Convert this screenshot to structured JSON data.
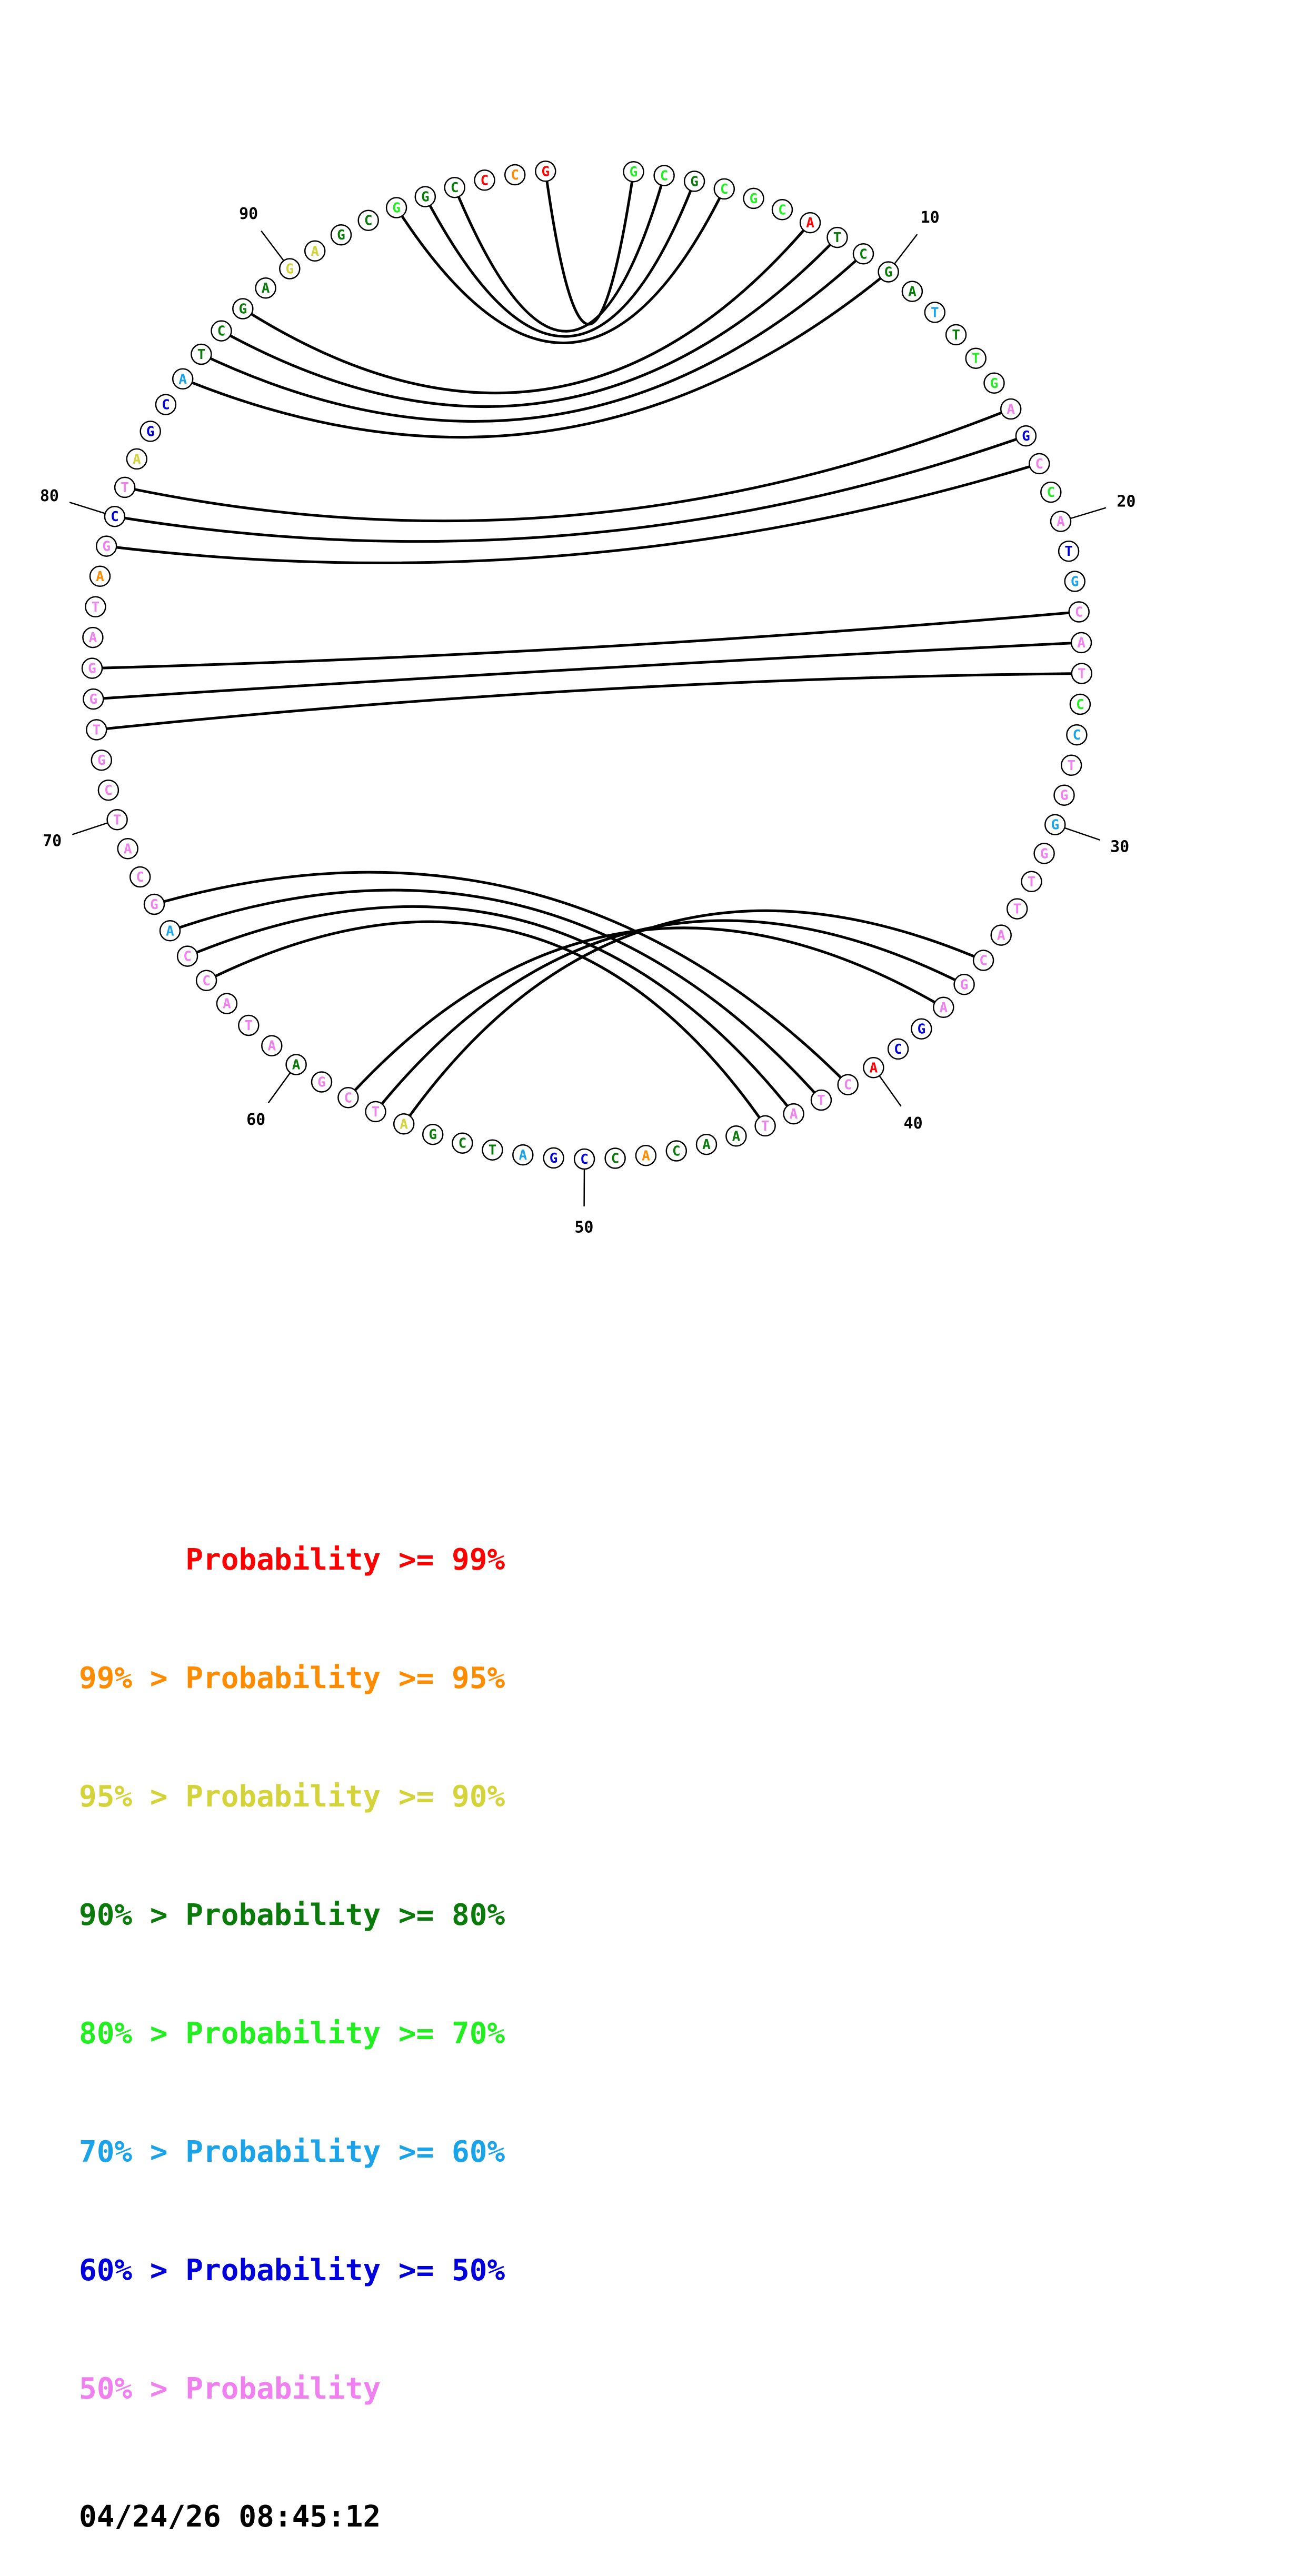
{
  "colors": {
    "p99": "#ff0000",
    "p95": "#ff8c00",
    "p90": "#d4d43a",
    "p80": "#0a7a0a",
    "p70": "#22ee22",
    "p60": "#1aa3e8",
    "p50": "#0000dd",
    "plow": "#f080f0"
  },
  "sequence": [
    {
      "base": "G",
      "color": "p70"
    },
    {
      "base": "C",
      "color": "p70"
    },
    {
      "base": "G",
      "color": "p80"
    },
    {
      "base": "C",
      "color": "p70"
    },
    {
      "base": "G",
      "color": "p70"
    },
    {
      "base": "C",
      "color": "p70"
    },
    {
      "base": "A",
      "color": "p99"
    },
    {
      "base": "T",
      "color": "p80"
    },
    {
      "base": "C",
      "color": "p80"
    },
    {
      "base": "G",
      "color": "p80"
    },
    {
      "base": "A",
      "color": "p80"
    },
    {
      "base": "T",
      "color": "p60"
    },
    {
      "base": "T",
      "color": "p80"
    },
    {
      "base": "T",
      "color": "p70"
    },
    {
      "base": "G",
      "color": "p70"
    },
    {
      "base": "A",
      "color": "plow"
    },
    {
      "base": "G",
      "color": "p50"
    },
    {
      "base": "C",
      "color": "plow"
    },
    {
      "base": "C",
      "color": "p70"
    },
    {
      "base": "A",
      "color": "plow"
    },
    {
      "base": "T",
      "color": "p50"
    },
    {
      "base": "G",
      "color": "p60"
    },
    {
      "base": "C",
      "color": "plow"
    },
    {
      "base": "A",
      "color": "plow"
    },
    {
      "base": "T",
      "color": "plow"
    },
    {
      "base": "C",
      "color": "p70"
    },
    {
      "base": "C",
      "color": "p60"
    },
    {
      "base": "T",
      "color": "plow"
    },
    {
      "base": "G",
      "color": "plow"
    },
    {
      "base": "G",
      "color": "p60"
    },
    {
      "base": "G",
      "color": "plow"
    },
    {
      "base": "T",
      "color": "plow"
    },
    {
      "base": "T",
      "color": "plow"
    },
    {
      "base": "A",
      "color": "plow"
    },
    {
      "base": "C",
      "color": "plow"
    },
    {
      "base": "G",
      "color": "plow"
    },
    {
      "base": "A",
      "color": "plow"
    },
    {
      "base": "G",
      "color": "p50"
    },
    {
      "base": "C",
      "color": "p50"
    },
    {
      "base": "A",
      "color": "p99"
    },
    {
      "base": "C",
      "color": "plow"
    },
    {
      "base": "T",
      "color": "plow"
    },
    {
      "base": "A",
      "color": "plow"
    },
    {
      "base": "T",
      "color": "plow"
    },
    {
      "base": "A",
      "color": "p80"
    },
    {
      "base": "A",
      "color": "p80"
    },
    {
      "base": "C",
      "color": "p80"
    },
    {
      "base": "A",
      "color": "p95"
    },
    {
      "base": "C",
      "color": "p80"
    },
    {
      "base": "C",
      "color": "p50"
    },
    {
      "base": "G",
      "color": "p50"
    },
    {
      "base": "A",
      "color": "p60"
    },
    {
      "base": "T",
      "color": "p80"
    },
    {
      "base": "C",
      "color": "p80"
    },
    {
      "base": "G",
      "color": "p80"
    },
    {
      "base": "A",
      "color": "p90"
    },
    {
      "base": "T",
      "color": "plow"
    },
    {
      "base": "C",
      "color": "plow"
    },
    {
      "base": "G",
      "color": "plow"
    },
    {
      "base": "A",
      "color": "p80"
    },
    {
      "base": "A",
      "color": "plow"
    },
    {
      "base": "T",
      "color": "plow"
    },
    {
      "base": "A",
      "color": "plow"
    },
    {
      "base": "C",
      "color": "plow"
    },
    {
      "base": "C",
      "color": "plow"
    },
    {
      "base": "A",
      "color": "p60"
    },
    {
      "base": "G",
      "color": "plow"
    },
    {
      "base": "C",
      "color": "plow"
    },
    {
      "base": "A",
      "color": "plow"
    },
    {
      "base": "T",
      "color": "plow"
    },
    {
      "base": "C",
      "color": "plow"
    },
    {
      "base": "G",
      "color": "plow"
    },
    {
      "base": "T",
      "color": "plow"
    },
    {
      "base": "G",
      "color": "plow"
    },
    {
      "base": "G",
      "color": "plow"
    },
    {
      "base": "A",
      "color": "plow"
    },
    {
      "base": "T",
      "color": "plow"
    },
    {
      "base": "A",
      "color": "p95"
    },
    {
      "base": "G",
      "color": "plow"
    },
    {
      "base": "C",
      "color": "p50"
    },
    {
      "base": "T",
      "color": "plow"
    },
    {
      "base": "A",
      "color": "p90"
    },
    {
      "base": "G",
      "color": "p50"
    },
    {
      "base": "C",
      "color": "p50"
    },
    {
      "base": "A",
      "color": "p60"
    },
    {
      "base": "T",
      "color": "p80"
    },
    {
      "base": "C",
      "color": "p80"
    },
    {
      "base": "G",
      "color": "p80"
    },
    {
      "base": "A",
      "color": "p80"
    },
    {
      "base": "G",
      "color": "p90"
    },
    {
      "base": "A",
      "color": "p90"
    },
    {
      "base": "G",
      "color": "p80"
    },
    {
      "base": "C",
      "color": "p80"
    },
    {
      "base": "G",
      "color": "p70"
    },
    {
      "base": "G",
      "color": "p80"
    },
    {
      "base": "C",
      "color": "p80"
    },
    {
      "base": "C",
      "color": "p99"
    },
    {
      "base": "C",
      "color": "p95"
    },
    {
      "base": "G",
      "color": "p99"
    }
  ],
  "pairs": [
    [
      1,
      99
    ],
    [
      2,
      96
    ],
    [
      3,
      95
    ],
    [
      4,
      94
    ],
    [
      7,
      88
    ],
    [
      8,
      87
    ],
    [
      9,
      86
    ],
    [
      10,
      85
    ],
    [
      16,
      81
    ],
    [
      17,
      80
    ],
    [
      18,
      79
    ],
    [
      23,
      75
    ],
    [
      24,
      74
    ],
    [
      25,
      73
    ],
    [
      35,
      56
    ],
    [
      36,
      57
    ],
    [
      37,
      58
    ],
    [
      41,
      67
    ],
    [
      42,
      66
    ],
    [
      43,
      65
    ],
    [
      44,
      64
    ]
  ],
  "position_labels": [
    {
      "index": 10,
      "text": "10"
    },
    {
      "index": 20,
      "text": "20"
    },
    {
      "index": 30,
      "text": "30"
    },
    {
      "index": 40,
      "text": "40"
    },
    {
      "index": 50,
      "text": "50"
    },
    {
      "index": 60,
      "text": "60"
    },
    {
      "index": 70,
      "text": "70"
    },
    {
      "index": 80,
      "text": "80"
    },
    {
      "index": 90,
      "text": "90"
    }
  ],
  "legend": [
    {
      "prefix": "",
      "label": "Probability",
      "suffix": ">= 99%",
      "color": "p99"
    },
    {
      "prefix": "99% >",
      "label": "Probability",
      "suffix": ">= 95%",
      "color": "p95"
    },
    {
      "prefix": "95% >",
      "label": "Probability",
      "suffix": ">= 90%",
      "color": "p90"
    },
    {
      "prefix": "90% >",
      "label": "Probability",
      "suffix": ">= 80%",
      "color": "p80"
    },
    {
      "prefix": "80% >",
      "label": "Probability",
      "suffix": ">= 70%",
      "color": "p70"
    },
    {
      "prefix": "70% >",
      "label": "Probability",
      "suffix": ">= 60%",
      "color": "p60"
    },
    {
      "prefix": "60% >",
      "label": "Probability",
      "suffix": ">= 50%",
      "color": "p50"
    },
    {
      "prefix": "50% >",
      "label": "Probability",
      "suffix": "",
      "color": "plow"
    }
  ],
  "timestamp": "04/24/26 08:45:12"
}
